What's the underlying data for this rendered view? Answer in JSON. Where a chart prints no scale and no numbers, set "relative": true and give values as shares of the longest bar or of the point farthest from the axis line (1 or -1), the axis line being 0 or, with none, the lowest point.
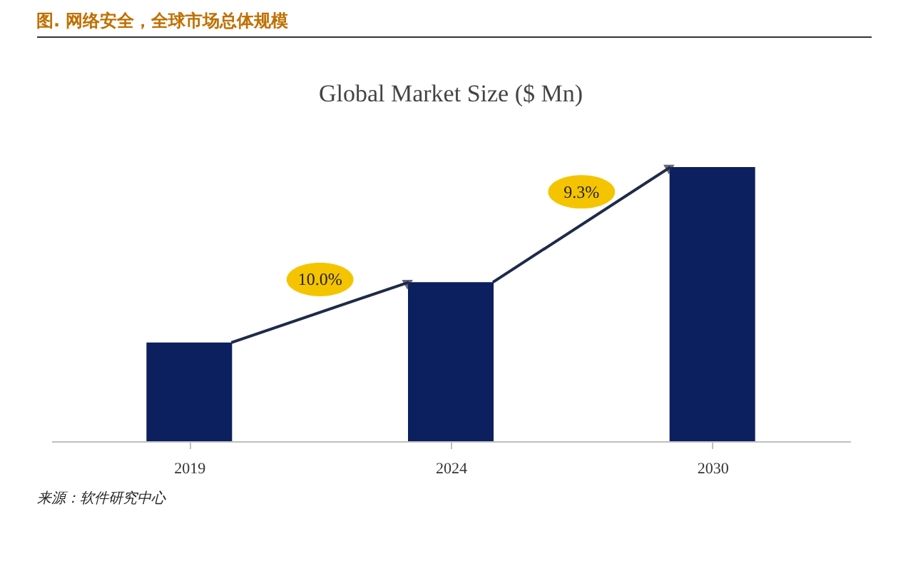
{
  "chart_data": {
    "type": "bar",
    "title": "图.  网络安全，全球市场总体规模",
    "subtitle": "Global Market Size ($ Mn)",
    "categories": [
      "2019",
      "2024",
      "2030"
    ],
    "values": [
      0.36,
      0.58,
      1
    ],
    "relative": true,
    "color": "#0c1f5e",
    "grid": false,
    "annotations": [
      "10.0%",
      "9.3%",
      "来源：软件研究中心"
    ]
  }
}
